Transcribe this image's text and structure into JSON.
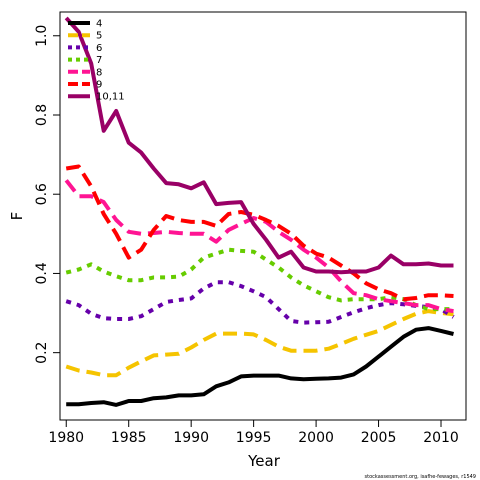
{
  "chart_data": {
    "type": "line",
    "xlabel": "Year",
    "ylabel": "F",
    "xlim": [
      1979.5,
      2012
    ],
    "ylim": [
      0.03,
      1.06
    ],
    "x_ticks": [
      1980,
      1985,
      1990,
      1995,
      2000,
      2005,
      2010
    ],
    "y_ticks": [
      0.2,
      0.4,
      0.6,
      0.8,
      1.0
    ],
    "x_tick_labels": [
      "1980",
      "1985",
      "1990",
      "1995",
      "2000",
      "2005",
      "2010"
    ],
    "y_tick_labels": [
      "0.2",
      "0.4",
      "0.6",
      "0.8",
      "1.0"
    ],
    "legend_position": "top-left",
    "grid": false,
    "credit": "stockassessment.org, isafhe-fewages, r1549",
    "x": [
      1980,
      1981,
      1982,
      1983,
      1984,
      1985,
      1986,
      1987,
      1988,
      1989,
      1990,
      1991,
      1992,
      1993,
      1994,
      1995,
      1996,
      1997,
      1998,
      1999,
      2000,
      2001,
      2002,
      2003,
      2004,
      2005,
      2006,
      2007,
      2008,
      2009,
      2010,
      2011
    ],
    "series": [
      {
        "name": "4",
        "color": "#000000",
        "dash": "solid",
        "values": [
          0.07,
          0.07,
          0.073,
          0.075,
          0.068,
          0.078,
          0.078,
          0.085,
          0.087,
          0.092,
          0.092,
          0.095,
          0.115,
          0.125,
          0.14,
          0.142,
          0.142,
          0.142,
          0.135,
          0.133,
          0.134,
          0.135,
          0.137,
          0.145,
          0.165,
          0.19,
          0.215,
          0.24,
          0.258,
          0.262,
          0.255,
          0.247
        ]
      },
      {
        "name": "5",
        "color": "#f5c400",
        "dash": "long",
        "values": [
          0.165,
          0.155,
          0.15,
          0.143,
          0.143,
          0.162,
          0.178,
          0.193,
          0.195,
          0.197,
          0.213,
          0.232,
          0.248,
          0.248,
          0.248,
          0.246,
          0.232,
          0.215,
          0.205,
          0.205,
          0.205,
          0.21,
          0.222,
          0.235,
          0.245,
          0.255,
          0.27,
          0.285,
          0.298,
          0.305,
          0.3,
          0.297
        ]
      },
      {
        "name": "6",
        "color": "#6600aa",
        "dash": "dot",
        "values": [
          0.33,
          0.32,
          0.298,
          0.287,
          0.285,
          0.285,
          0.292,
          0.31,
          0.328,
          0.333,
          0.337,
          0.362,
          0.378,
          0.378,
          0.368,
          0.355,
          0.34,
          0.31,
          0.28,
          0.276,
          0.277,
          0.278,
          0.29,
          0.302,
          0.312,
          0.32,
          0.325,
          0.322,
          0.318,
          0.315,
          0.31,
          0.29
        ]
      },
      {
        "name": "7",
        "color": "#66cc00",
        "dash": "dot",
        "values": [
          0.402,
          0.41,
          0.423,
          0.405,
          0.393,
          0.383,
          0.383,
          0.39,
          0.39,
          0.392,
          0.41,
          0.44,
          0.45,
          0.46,
          0.457,
          0.455,
          0.435,
          0.415,
          0.39,
          0.37,
          0.355,
          0.34,
          0.332,
          0.335,
          0.335,
          0.335,
          0.34,
          0.335,
          0.32,
          0.31,
          0.31,
          0.31
        ]
      },
      {
        "name": "8",
        "color": "#ff1493",
        "dash": "long",
        "values": [
          0.635,
          0.595,
          0.595,
          0.58,
          0.535,
          0.505,
          0.5,
          0.502,
          0.505,
          0.502,
          0.5,
          0.5,
          0.48,
          0.51,
          0.525,
          0.54,
          0.53,
          0.505,
          0.485,
          0.46,
          0.44,
          0.415,
          0.38,
          0.35,
          0.345,
          0.335,
          0.33,
          0.325,
          0.32,
          0.32,
          0.31,
          0.305
        ]
      },
      {
        "name": "9",
        "color": "#ff0000",
        "dash": "long",
        "values": [
          0.665,
          0.67,
          0.62,
          0.55,
          0.5,
          0.44,
          0.46,
          0.51,
          0.545,
          0.535,
          0.53,
          0.53,
          0.52,
          0.55,
          0.555,
          0.548,
          0.535,
          0.52,
          0.5,
          0.47,
          0.45,
          0.44,
          0.42,
          0.4,
          0.375,
          0.36,
          0.35,
          0.335,
          0.338,
          0.345,
          0.345,
          0.343
        ]
      },
      {
        "name": "10,11",
        "color": "#990066",
        "dash": "solid",
        "values": [
          1.045,
          1.01,
          0.93,
          0.76,
          0.81,
          0.73,
          0.705,
          0.665,
          0.628,
          0.625,
          0.615,
          0.63,
          0.575,
          0.578,
          0.58,
          0.525,
          0.485,
          0.44,
          0.455,
          0.415,
          0.405,
          0.405,
          0.403,
          0.405,
          0.405,
          0.415,
          0.445,
          0.423,
          0.423,
          0.425,
          0.42,
          0.42
        ]
      }
    ]
  }
}
